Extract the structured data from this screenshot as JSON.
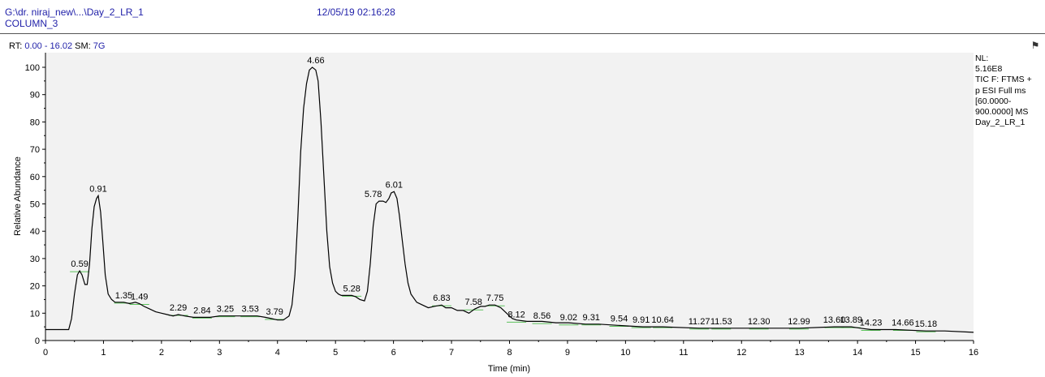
{
  "header": {
    "file_path": "G:\\dr. niraj_new\\...\\Day_2_LR_1",
    "column": "COLUMN_3",
    "datetime": "12/05/19 02:16:28"
  },
  "range_bar": {
    "rt_label": "RT:",
    "rt_value": "0.00 - 16.02",
    "sm_label": "SM:",
    "sm_value": "7G"
  },
  "info_panel": {
    "nl_label": "NL:",
    "nl_value": "5.16E8",
    "lines": [
      "TIC F: FTMS +",
      "p ESI Full ms",
      "[60.0000-",
      "900.0000]  MS",
      "Day_2_LR_1"
    ]
  },
  "icons": {
    "pin": "pin-icon"
  },
  "colors": {
    "trace": "#000000",
    "plot_bg": "#f2f2f2",
    "header_text": "#1f1fa8",
    "peak_marker": "#5cc25c"
  },
  "chart_data": {
    "type": "line",
    "xlabel": "Time (min)",
    "ylabel": "Relative Abundance",
    "xlim": [
      0,
      16
    ],
    "ylim": [
      0,
      100
    ],
    "x_ticks": [
      0,
      1,
      2,
      3,
      4,
      5,
      6,
      7,
      8,
      9,
      10,
      11,
      12,
      13,
      14,
      15,
      16
    ],
    "y_ticks": [
      0,
      10,
      20,
      30,
      40,
      50,
      60,
      70,
      80,
      90,
      100
    ],
    "grid": false,
    "series": [
      {
        "x": [
          0.0,
          0.4,
          0.45,
          0.5,
          0.55,
          0.59,
          0.63,
          0.68,
          0.72,
          0.76,
          0.8,
          0.84,
          0.88,
          0.91,
          0.95,
          0.99,
          1.03,
          1.08,
          1.14,
          1.2,
          1.28,
          1.35,
          1.45,
          1.55,
          1.62,
          1.7,
          1.8,
          1.9,
          2.0,
          2.1,
          2.2,
          2.29,
          2.4,
          2.55,
          2.7,
          2.84,
          3.0,
          3.1,
          3.25,
          3.4,
          3.53,
          3.65,
          3.79,
          3.9,
          4.0,
          4.1,
          4.2,
          4.25,
          4.3,
          4.35,
          4.4,
          4.45,
          4.5,
          4.55,
          4.6,
          4.63,
          4.66,
          4.7,
          4.75,
          4.8,
          4.85,
          4.9,
          4.95,
          5.0,
          5.05,
          5.1,
          5.2,
          5.28,
          5.35,
          5.42,
          5.5,
          5.55,
          5.6,
          5.65,
          5.7,
          5.75,
          5.78,
          5.82,
          5.87,
          5.92,
          5.96,
          6.01,
          6.06,
          6.1,
          6.15,
          6.2,
          6.25,
          6.3,
          6.4,
          6.5,
          6.6,
          6.7,
          6.83,
          6.9,
          7.0,
          7.1,
          7.2,
          7.3,
          7.4,
          7.5,
          7.58,
          7.65,
          7.75,
          7.85,
          7.95,
          8.05,
          8.12,
          8.3,
          8.56,
          8.8,
          9.02,
          9.31,
          9.54,
          9.91,
          10.3,
          10.64,
          11.27,
          11.53,
          12.3,
          12.99,
          13.6,
          13.89,
          14.05,
          14.23,
          14.66,
          15.18,
          15.5,
          16.0
        ],
        "y": [
          4.0,
          4.0,
          8.0,
          17.0,
          24.0,
          25.5,
          24.0,
          20.5,
          20.5,
          28.0,
          41.0,
          49.0,
          52.0,
          53.0,
          47.0,
          36.0,
          24.0,
          17.0,
          15.0,
          14.0,
          14.0,
          14.0,
          13.5,
          14.0,
          13.5,
          12.5,
          11.5,
          10.5,
          10.0,
          9.5,
          9.0,
          9.5,
          9.0,
          8.5,
          8.5,
          8.5,
          9.0,
          9.0,
          9.0,
          9.0,
          9.0,
          9.0,
          8.5,
          8.0,
          7.5,
          7.5,
          9.0,
          13.0,
          24.0,
          45.0,
          69.0,
          85.0,
          94.0,
          99.0,
          100.0,
          99.5,
          99.0,
          95.0,
          80.0,
          60.0,
          40.0,
          27.0,
          21.0,
          18.0,
          17.0,
          16.5,
          16.5,
          16.5,
          16.0,
          15.0,
          14.5,
          18.0,
          28.0,
          42.0,
          50.0,
          51.0,
          51.0,
          51.0,
          50.5,
          52.0,
          54.0,
          54.5,
          52.0,
          46.0,
          37.0,
          28.0,
          21.0,
          17.0,
          14.0,
          13.0,
          12.0,
          12.5,
          13.0,
          12.0,
          12.0,
          11.0,
          11.0,
          10.0,
          11.5,
          12.5,
          12.5,
          13.0,
          13.0,
          12.0,
          10.0,
          8.0,
          7.5,
          7.0,
          7.0,
          6.5,
          6.5,
          6.0,
          6.0,
          5.5,
          5.0,
          5.0,
          4.5,
          4.5,
          4.5,
          4.5,
          5.0,
          5.0,
          4.5,
          4.0,
          4.0,
          3.5,
          3.5,
          3.0
        ]
      }
    ],
    "peak_labels": [
      {
        "x": 0.59,
        "y": 25.5,
        "label": "0.59"
      },
      {
        "x": 0.91,
        "y": 53.0,
        "label": "0.91"
      },
      {
        "x": 1.35,
        "y": 14.0,
        "label": "1.35"
      },
      {
        "x": 1.62,
        "y": 13.5,
        "label": "1.49"
      },
      {
        "x": 2.29,
        "y": 9.5,
        "label": "2.29"
      },
      {
        "x": 2.7,
        "y": 8.5,
        "label": "2.84"
      },
      {
        "x": 3.1,
        "y": 9.0,
        "label": "3.25"
      },
      {
        "x": 3.53,
        "y": 9.0,
        "label": "3.53"
      },
      {
        "x": 3.95,
        "y": 8.0,
        "label": "3.79"
      },
      {
        "x": 4.66,
        "y": 100.0,
        "label": "4.66"
      },
      {
        "x": 5.28,
        "y": 16.5,
        "label": "5.28"
      },
      {
        "x": 5.65,
        "y": 51.0,
        "label": "5.78"
      },
      {
        "x": 6.01,
        "y": 54.5,
        "label": "6.01"
      },
      {
        "x": 6.83,
        "y": 13.0,
        "label": "6.83"
      },
      {
        "x": 7.38,
        "y": 11.5,
        "label": "7.58"
      },
      {
        "x": 7.75,
        "y": 13.0,
        "label": "7.75"
      },
      {
        "x": 8.12,
        "y": 7.0,
        "label": "8.12"
      },
      {
        "x": 8.56,
        "y": 6.5,
        "label": "8.56"
      },
      {
        "x": 9.02,
        "y": 6.0,
        "label": "9.02"
      },
      {
        "x": 9.41,
        "y": 6.0,
        "label": "9.31"
      },
      {
        "x": 9.89,
        "y": 5.5,
        "label": "9.54"
      },
      {
        "x": 10.27,
        "y": 5.0,
        "label": "9.91"
      },
      {
        "x": 10.64,
        "y": 5.0,
        "label": "10.64"
      },
      {
        "x": 11.27,
        "y": 4.5,
        "label": "11.27"
      },
      {
        "x": 11.65,
        "y": 4.5,
        "label": "11.53"
      },
      {
        "x": 12.3,
        "y": 4.5,
        "label": "12.30"
      },
      {
        "x": 12.99,
        "y": 4.5,
        "label": "12.99"
      },
      {
        "x": 13.6,
        "y": 5.0,
        "label": "13.60"
      },
      {
        "x": 13.89,
        "y": 5.0,
        "label": "13.89"
      },
      {
        "x": 14.23,
        "y": 4.0,
        "label": "14.23"
      },
      {
        "x": 14.78,
        "y": 4.0,
        "label": "14.66"
      },
      {
        "x": 15.18,
        "y": 3.5,
        "label": "15.18"
      }
    ]
  }
}
